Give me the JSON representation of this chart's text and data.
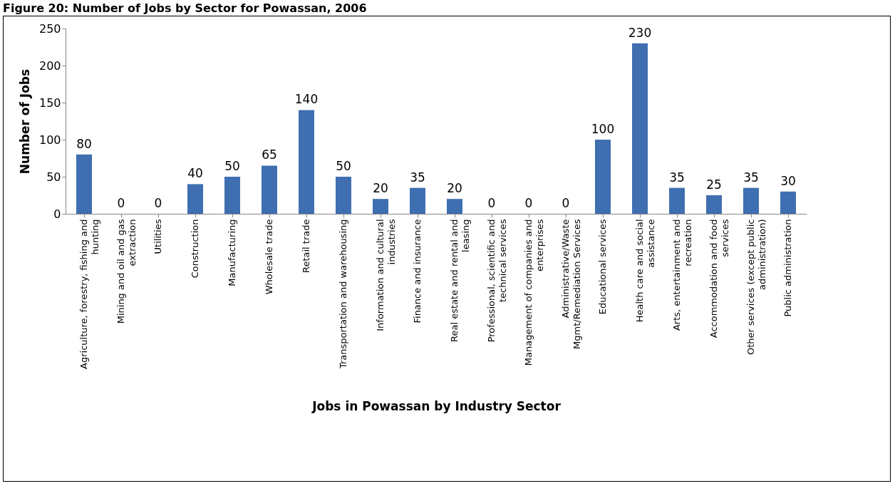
{
  "chart_data": {
    "type": "bar",
    "title": "Figure 20: Number of Jobs by Sector for Powassan, 2006",
    "xlabel": "Jobs in Powassan by Industry Sector",
    "ylabel": "Number of Jobs",
    "categories": [
      "Agriculture, forestry, fishing and hunting",
      "Mining and oil and gas extraction",
      "Utilities",
      "Construction",
      "Manufacturing",
      "Wholesale trade",
      "Retail trade",
      "Transportation and warehousing",
      "Information and cultural industries",
      "Finance and insurance",
      "Real estate and rental and leasing",
      "Professional, scientific and technical services",
      "Management of companies and enterprises",
      "Administrative/Waste Mgmt/Remediation Services",
      "Educational services",
      "Health care and social assistance",
      "Arts, entertainment and recreation",
      "Accommodation and food services",
      "Other services (except public administration)",
      "Public administration"
    ],
    "values": [
      80,
      0,
      0,
      40,
      50,
      65,
      140,
      50,
      20,
      35,
      20,
      0,
      0,
      0,
      100,
      230,
      35,
      25,
      35,
      30
    ],
    "color": "#3f6fb0",
    "ylim": [
      0,
      250
    ],
    "yticks": [
      0,
      50,
      100,
      150,
      200,
      250
    ],
    "data_labels": true,
    "grid": false
  }
}
